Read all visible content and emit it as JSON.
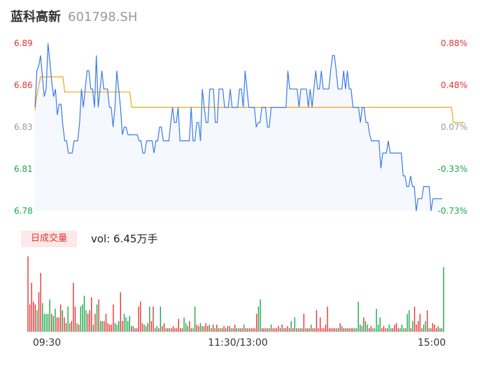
{
  "header": {
    "stock_name": "蓝科高新",
    "stock_code": "601798.SH"
  },
  "volume_panel": {
    "badge": "日成交量",
    "vol_label": "vol: ",
    "vol_value": "6.45万手"
  },
  "colors": {
    "price_line": "#3b7be8",
    "avg_line": "#f0a810",
    "up": "#e83333",
    "down": "#1aa84a",
    "neutral": "#999999",
    "fill": "#f5f8fe"
  },
  "chart_data": [
    {
      "type": "line",
      "series": [
        {
          "values": [
            6.848,
            6.872,
            6.875,
            6.882,
            6.868,
            6.855,
            6.86,
            6.89,
            6.878,
            6.865,
            6.855,
            6.86,
            6.843,
            6.85,
            6.85,
            6.836,
            6.826,
            6.826,
            6.818,
            6.818,
            6.818,
            6.826,
            6.826,
            6.826,
            6.838,
            6.86,
            6.848,
            6.86,
            6.872,
            6.872,
            6.86,
            6.86,
            6.848,
            6.882,
            6.848,
            6.86,
            6.872,
            6.86,
            6.86,
            6.86,
            6.848,
            6.848,
            6.835,
            6.848,
            6.872,
            6.86,
            6.848,
            6.83,
            6.835,
            6.835,
            6.83,
            6.83,
            6.83,
            6.83,
            6.83,
            6.83,
            6.826,
            6.826,
            6.818,
            6.818,
            6.826,
            6.826,
            6.826,
            6.826,
            6.818,
            6.826,
            6.826,
            6.835,
            6.835,
            6.826,
            6.826,
            6.826,
            6.826,
            6.838,
            6.848,
            6.838,
            6.838,
            6.848,
            6.826,
            6.826,
            6.826,
            6.826,
            6.826,
            6.826,
            6.848,
            6.826,
            6.826,
            6.838,
            6.838,
            6.826,
            6.86,
            6.848,
            6.838,
            6.838,
            6.86,
            6.86,
            6.86,
            6.838,
            6.838,
            6.86,
            6.86,
            6.86,
            6.848,
            6.848,
            6.848,
            6.86,
            6.848,
            6.848,
            6.848,
            6.848,
            6.86,
            6.86,
            6.848,
            6.872,
            6.86,
            6.848,
            6.848,
            6.848,
            6.848,
            6.835,
            6.838,
            6.838,
            6.848,
            6.848,
            6.848,
            6.835,
            6.835,
            6.848,
            6.848,
            6.848,
            6.848,
            6.848,
            6.848,
            6.848,
            6.848,
            6.848,
            6.872,
            6.86,
            6.86,
            6.86,
            6.86,
            6.86,
            6.848,
            6.86,
            6.86,
            6.86,
            6.86,
            6.848,
            6.86,
            6.848,
            6.86,
            6.872,
            6.86,
            6.86,
            6.872,
            6.86,
            6.86,
            6.86,
            6.86,
            6.872,
            6.882,
            6.882,
            6.872,
            6.86,
            6.86,
            6.86,
            6.872,
            6.86,
            6.872,
            6.86,
            6.86,
            6.848,
            6.848,
            6.848,
            6.848,
            6.838,
            6.848,
            6.848,
            6.838,
            6.838,
            6.83,
            6.826,
            6.826,
            6.826,
            6.826,
            6.826,
            6.808,
            6.818,
            6.818,
            6.818,
            6.826,
            6.818,
            6.818,
            6.818,
            6.818,
            6.818,
            6.818,
            6.818,
            6.803,
            6.803,
            6.796,
            6.796,
            6.803,
            6.796,
            6.796,
            6.78,
            6.788,
            6.788,
            6.788,
            6.796,
            6.796,
            6.796,
            6.796,
            6.78,
            6.788,
            6.788,
            6.788,
            6.788,
            6.788,
            6.788
          ]
        }
      ],
      "avg_values": [
        6.846,
        6.856,
        6.862,
        6.868,
        6.868,
        6.868,
        6.868,
        6.868,
        6.868,
        6.868,
        6.868,
        6.868,
        6.868,
        6.868,
        6.868,
        6.868,
        6.858,
        6.858,
        6.858,
        6.858,
        6.858,
        6.858,
        6.858,
        6.858,
        6.858,
        6.858,
        6.858,
        6.858,
        6.858,
        6.858,
        6.858,
        6.858,
        6.858,
        6.858,
        6.858,
        6.858,
        6.858,
        6.858,
        6.858,
        6.858,
        6.858,
        6.858,
        6.858,
        6.858,
        6.858,
        6.858,
        6.858,
        6.858,
        6.858,
        6.858,
        6.858,
        6.858,
        6.848,
        6.848,
        6.848,
        6.848,
        6.848,
        6.848,
        6.848,
        6.848,
        6.848,
        6.848,
        6.848,
        6.848,
        6.848,
        6.848,
        6.848,
        6.848,
        6.848,
        6.848,
        6.848,
        6.848,
        6.848,
        6.848,
        6.848,
        6.848,
        6.848,
        6.848,
        6.848,
        6.848,
        6.848,
        6.848,
        6.848,
        6.848,
        6.848,
        6.848,
        6.848,
        6.848,
        6.848,
        6.848,
        6.848,
        6.848,
        6.848,
        6.848,
        6.848,
        6.848,
        6.848,
        6.848,
        6.848,
        6.848,
        6.848,
        6.848,
        6.848,
        6.848,
        6.848,
        6.848,
        6.848,
        6.848,
        6.848,
        6.848,
        6.848,
        6.848,
        6.848,
        6.848,
        6.848,
        6.848,
        6.848,
        6.848,
        6.848,
        6.848,
        6.848,
        6.848,
        6.848,
        6.848,
        6.848,
        6.848,
        6.848,
        6.848,
        6.848,
        6.848,
        6.848,
        6.848,
        6.848,
        6.848,
        6.848,
        6.848,
        6.848,
        6.848,
        6.848,
        6.848,
        6.848,
        6.848,
        6.848,
        6.848,
        6.848,
        6.848,
        6.848,
        6.848,
        6.848,
        6.848,
        6.848,
        6.848,
        6.848,
        6.848,
        6.848,
        6.848,
        6.848,
        6.848,
        6.848,
        6.848,
        6.848,
        6.848,
        6.848,
        6.848,
        6.848,
        6.848,
        6.848,
        6.848,
        6.848,
        6.848,
        6.848,
        6.848,
        6.848,
        6.848,
        6.848,
        6.848,
        6.848,
        6.848,
        6.848,
        6.848,
        6.848,
        6.848,
        6.848,
        6.848,
        6.848,
        6.848,
        6.848,
        6.848,
        6.848,
        6.848,
        6.848,
        6.848,
        6.848,
        6.848,
        6.848,
        6.848,
        6.848,
        6.848,
        6.848,
        6.848,
        6.848,
        6.848,
        6.848,
        6.848,
        6.848,
        6.848,
        6.848,
        6.848,
        6.848,
        6.848,
        6.848,
        6.848,
        6.848,
        6.848,
        6.848,
        6.848,
        6.848,
        6.848,
        6.848,
        6.848,
        6.848,
        6.848,
        6.848,
        6.848,
        6.848,
        6.838,
        6.838,
        6.838,
        6.838,
        6.838,
        6.838,
        6.838
      ],
      "ylim": [
        6.78,
        6.89
      ],
      "y_ticks_left": [
        "6.89",
        "6.86",
        "6.83",
        "6.81",
        "6.78"
      ],
      "y_ticks_right": [
        "0.88%",
        "0.48%",
        "0.07%",
        "-0.33%",
        "-0.73%"
      ],
      "tick_colors": [
        "up",
        "up",
        "neutral",
        "down",
        "down"
      ],
      "grid": false
    },
    {
      "type": "bar",
      "x_ticks": [
        "09:30",
        "11:30/13:00",
        "15:00"
      ],
      "values": [
        1.05,
        0.38,
        0.68,
        0.42,
        0.38,
        0.3,
        0.55,
        0.82,
        0.4,
        0.25,
        0.25,
        0.25,
        0.45,
        0.25,
        0.22,
        0.32,
        0.2,
        0.2,
        0.38,
        0.3,
        0.2,
        0.12,
        0.35,
        0.12,
        0.15,
        0.68,
        0.35,
        0.12,
        0.1,
        0.35,
        0.38,
        0.5,
        0.3,
        0.25,
        0.3,
        0.48,
        0.1,
        0.25,
        0.38,
        0.45,
        0.15,
        0.15,
        0.15,
        0.25,
        0.12,
        0.1,
        0.1,
        0.38,
        0.12,
        0.1,
        0.15,
        0.55,
        0.15,
        0.25,
        0.2,
        0.15,
        0.22,
        0.08,
        0.08,
        0.05,
        0.05,
        0.35,
        0.42,
        0.12,
        0.1,
        0.08,
        0.12,
        0.35,
        0.15,
        0.35,
        0.05,
        0.08,
        0.05,
        0.35,
        0.08,
        0.12,
        0.05,
        0.05,
        0.05,
        0.05,
        0.08,
        0.05,
        0.05,
        0.18,
        0.05,
        0.05,
        0.2,
        0.12,
        0.08,
        0.15,
        0.05,
        0.05,
        0.35,
        0.1,
        0.08,
        0.12,
        0.08,
        0.08,
        0.12,
        0.08,
        0.1,
        0.05,
        0.1,
        0.05,
        0.1,
        0.05,
        0.05,
        0.05,
        0.08,
        0.05,
        0.08,
        0.08,
        0.05,
        0.05,
        0.1,
        0.05,
        0.05,
        0.05,
        0.05,
        0.1,
        0.05,
        0.05,
        0.05,
        0.05,
        0.05,
        0.05,
        0.25,
        0.35,
        0.45,
        0.05,
        0.05,
        0.05,
        0.05,
        0.05,
        0.1,
        0.05,
        0.05,
        0.05,
        0.08,
        0.05,
        0.1,
        0.05,
        0.05,
        0.08,
        0.05,
        0.15,
        0.05,
        0.2,
        0.05,
        0.05,
        0.05,
        0.05,
        0.25,
        0.05,
        0.05,
        0.05,
        0.1,
        0.05,
        0.05,
        0.3,
        0.05,
        0.2,
        0.05,
        0.05,
        0.1,
        0.35,
        0.05,
        0.05,
        0.05,
        0.05,
        0.05,
        0.05,
        0.12,
        0.08,
        0.05,
        0.05,
        0.05,
        0.05,
        0.05,
        0.05,
        0.05,
        0.05,
        0.42,
        0.1,
        0.08,
        0.2,
        0.15,
        0.1,
        0.05,
        0.08,
        0.05,
        0.05,
        0.32,
        0.1,
        0.2,
        0.05,
        0.08,
        0.05,
        0.05,
        0.1,
        0.05,
        0.05,
        0.1,
        0.12,
        0.05,
        0.05,
        0.1,
        0.05,
        0.05,
        0.25,
        0.3,
        0.05,
        0.15,
        0.35,
        0.1,
        0.15,
        0.25,
        0.05,
        0.1,
        0.15,
        0.3,
        0.05,
        0.05,
        0.12,
        0.1,
        0.05,
        0.08,
        0.05,
        0.05,
        0.9
      ],
      "colors": [
        "up",
        "up",
        "up",
        "up",
        "up",
        "down",
        "up",
        "up",
        "down",
        "down",
        "down",
        "down",
        "down",
        "up",
        "down",
        "down",
        "up",
        "up",
        "up",
        "down",
        "up",
        "up",
        "down",
        "down",
        "up",
        "up",
        "up",
        "down",
        "up",
        "down",
        "down",
        "down",
        "down",
        "up",
        "up",
        "up",
        "down",
        "up",
        "down",
        "up",
        "down",
        "down",
        "up",
        "up",
        "up",
        "up",
        "up",
        "up",
        "down",
        "down",
        "down",
        "up",
        "up",
        "down",
        "down",
        "down",
        "down",
        "up",
        "down",
        "up",
        "up",
        "up",
        "up",
        "up",
        "down",
        "down",
        "up",
        "down",
        "up",
        "up",
        "down",
        "down",
        "up",
        "down",
        "up",
        "up",
        "down",
        "up",
        "down",
        "up",
        "up",
        "up",
        "up",
        "up",
        "up",
        "up",
        "down",
        "down",
        "down",
        "up",
        "up",
        "down",
        "down",
        "up",
        "up",
        "down",
        "up",
        "down",
        "up",
        "up",
        "down",
        "up",
        "up",
        "down",
        "up",
        "up",
        "down",
        "up",
        "up",
        "up",
        "down",
        "up",
        "down",
        "up",
        "up",
        "down",
        "down",
        "up",
        "up",
        "down",
        "up",
        "up",
        "down",
        "up",
        "up",
        "up",
        "up",
        "down",
        "down",
        "up",
        "up",
        "up",
        "down",
        "up",
        "down",
        "up",
        "up",
        "up",
        "up",
        "down",
        "up",
        "down",
        "up",
        "up",
        "up",
        "down",
        "up",
        "down",
        "up",
        "down",
        "up",
        "down",
        "up",
        "down",
        "up",
        "up",
        "down",
        "up",
        "up",
        "up",
        "up",
        "up",
        "up",
        "up",
        "up",
        "up",
        "up",
        "up",
        "up",
        "up",
        "down",
        "up",
        "up",
        "down",
        "up",
        "up",
        "down",
        "up",
        "up",
        "up",
        "down",
        "down",
        "down",
        "down",
        "down",
        "up",
        "down",
        "down",
        "up",
        "up",
        "down",
        "down",
        "down",
        "down",
        "down",
        "up",
        "up",
        "up",
        "down",
        "down",
        "down",
        "up",
        "up",
        "up",
        "up",
        "down",
        "down",
        "down",
        "up",
        "down",
        "down",
        "up",
        "down",
        "up",
        "up",
        "up",
        "up",
        "up",
        "down",
        "down",
        "up",
        "down",
        "up",
        "up",
        "up",
        "up",
        "down",
        "up",
        "down",
        "down",
        "up",
        "up",
        "down",
        "down"
      ]
    }
  ]
}
